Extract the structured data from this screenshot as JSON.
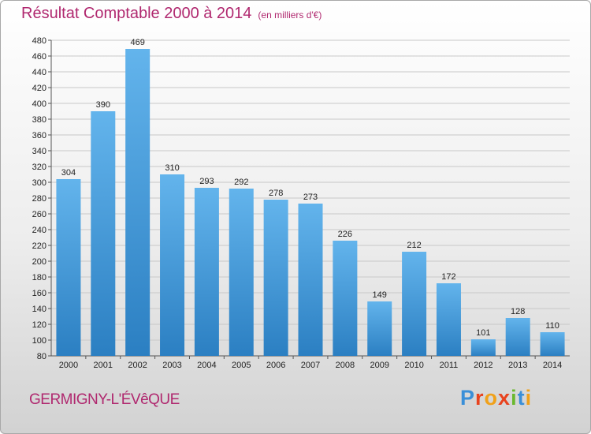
{
  "header": {
    "title": "Résultat Comptable 2000 à 2014",
    "subtitle": "(en milliers d'€)"
  },
  "footer": {
    "town": "GERMIGNY-L'ÉVêQUE",
    "logo_letters": [
      "P",
      "r",
      "o",
      "x",
      "i",
      "t",
      "i"
    ]
  },
  "chart_data": {
    "type": "bar",
    "title": "Résultat Comptable 2000 à 2014",
    "subtitle": "(en milliers d'€)",
    "xlabel": "",
    "ylabel": "",
    "categories": [
      "2000",
      "2001",
      "2002",
      "2003",
      "2004",
      "2005",
      "2006",
      "2007",
      "2008",
      "2009",
      "2010",
      "2011",
      "2012",
      "2013",
      "2014"
    ],
    "values": [
      304,
      390,
      469,
      310,
      293,
      292,
      278,
      273,
      226,
      149,
      212,
      172,
      101,
      128,
      110
    ],
    "ylim": [
      80,
      480
    ],
    "ytick_step": 20,
    "grid": true,
    "bar_color_top": "#63b4ec",
    "bar_color_bottom": "#2b7fc2",
    "grid_color": "#c8c8c8"
  }
}
